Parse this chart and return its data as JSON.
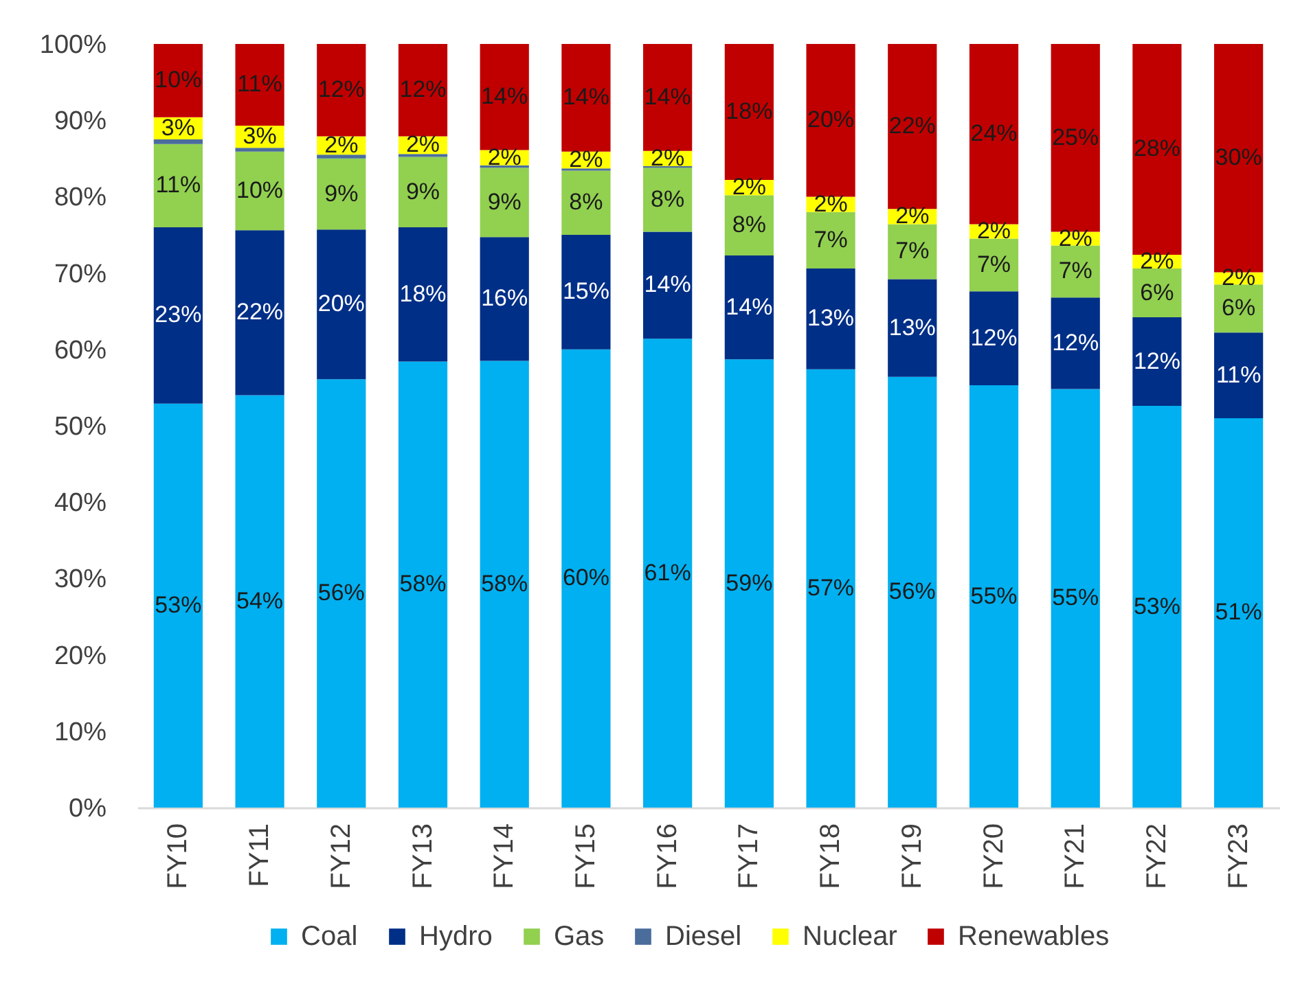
{
  "chart_data": {
    "type": "bar",
    "stacked": true,
    "legend": "bottom",
    "categories": [
      "FY10",
      "FY11",
      "FY12",
      "FY13",
      "FY14",
      "FY15",
      "FY16",
      "FY17",
      "FY18",
      "FY19",
      "FY20",
      "FY21",
      "FY22",
      "FY23"
    ],
    "ylim": [
      0,
      100
    ],
    "yticks": [
      {
        "value": 0,
        "label": "0%"
      },
      {
        "value": 10,
        "label": "10%"
      },
      {
        "value": 20,
        "label": "20%"
      },
      {
        "value": 30,
        "label": "30%"
      },
      {
        "value": 40,
        "label": "40%"
      },
      {
        "value": 50,
        "label": "50%"
      },
      {
        "value": 60,
        "label": "60%"
      },
      {
        "value": 70,
        "label": "70%"
      },
      {
        "value": 80,
        "label": "80%"
      },
      {
        "value": 90,
        "label": "90%"
      },
      {
        "value": 100,
        "label": "100%"
      }
    ],
    "series": [
      {
        "name": "Coal",
        "color": "#00b0f0",
        "values": [
          52.9,
          54.0,
          56.1,
          58.4,
          58.5,
          60.0,
          61.4,
          58.7,
          57.4,
          56.4,
          55.3,
          54.8,
          52.6,
          51.0
        ],
        "value_labels": [
          "53%",
          "54%",
          "56%",
          "58%",
          "58%",
          "60%",
          "61%",
          "59%",
          "57%",
          "56%",
          "55%",
          "55%",
          "53%",
          "51%"
        ]
      },
      {
        "name": "Hydro",
        "color": "#002f87",
        "values": [
          23.1,
          21.6,
          19.6,
          17.6,
          16.2,
          15.0,
          14.0,
          13.6,
          13.2,
          12.8,
          12.3,
          12.0,
          11.6,
          11.2
        ],
        "value_labels": [
          "23%",
          "22%",
          "20%",
          "18%",
          "16%",
          "15%",
          "14%",
          "14%",
          "13%",
          "13%",
          "12%",
          "12%",
          "12%",
          "11%"
        ]
      },
      {
        "name": "Gas",
        "color": "#92d050",
        "values": [
          10.9,
          10.3,
          9.3,
          9.2,
          9.1,
          8.4,
          8.4,
          7.9,
          7.4,
          7.2,
          6.9,
          6.8,
          6.4,
          6.3
        ],
        "value_labels": [
          "11%",
          "10%",
          "9%",
          "9%",
          "9%",
          "8%",
          "8%",
          "8%",
          "7%",
          "7%",
          "7%",
          "7%",
          "6%",
          "6%"
        ]
      },
      {
        "name": "Diesel",
        "color": "#4a6d9c",
        "values": [
          0.6,
          0.5,
          0.5,
          0.4,
          0.3,
          0.3,
          0.2,
          null,
          null,
          null,
          null,
          null,
          null,
          null
        ]
      },
      {
        "name": "Nuclear",
        "color": "#ffff00",
        "values": [
          2.9,
          2.9,
          2.4,
          2.3,
          2.0,
          2.2,
          2.0,
          2.0,
          2.0,
          2.0,
          1.9,
          1.8,
          1.8,
          1.6
        ],
        "value_labels": [
          "3%",
          "3%",
          "2%",
          "2%",
          "2%",
          "2%",
          "2%",
          "2%",
          "2%",
          "2%",
          "2%",
          "2%",
          "2%",
          "2%"
        ]
      },
      {
        "name": "Renewables",
        "color": "#c00000",
        "values": [
          9.6,
          10.7,
          12.1,
          12.1,
          13.9,
          14.1,
          14.0,
          17.8,
          20.0,
          21.6,
          23.6,
          24.6,
          27.6,
          29.9
        ],
        "value_labels": [
          "10%",
          "11%",
          "12%",
          "12%",
          "14%",
          "14%",
          "14%",
          "18%",
          "20%",
          "22%",
          "24%",
          "25%",
          "28%",
          "30%"
        ]
      }
    ]
  }
}
